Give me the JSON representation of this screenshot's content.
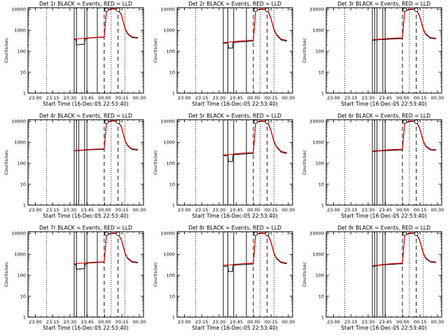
{
  "chart_data": {
    "type": "line",
    "layout": "3x3 grid of detector panels",
    "ylabel": "Counts/sec",
    "xlabel": "Start Time (16-Dec-05 22:53:40)",
    "x_tick_labels": [
      "23:00",
      "23:15",
      "23:30",
      "23:45",
      "00:00",
      "00:15",
      "00:30"
    ],
    "x_tick_minutes": [
      6.33,
      21.33,
      36.33,
      51.33,
      66.33,
      81.33,
      96.33
    ],
    "xlim_minutes": [
      0,
      100
    ],
    "yscale": "log",
    "ylim": [
      1,
      12000
    ],
    "y_tick_labels": [
      "1",
      "10",
      "100",
      "1000",
      "10000"
    ],
    "y_tick_values": [
      1,
      10,
      100,
      1000,
      10000
    ],
    "series_colors": {
      "events": "#000000",
      "lld": "#dd0000"
    },
    "panels": [
      {
        "title": "Det 1r BLACK = Events, RED = LLD",
        "events_x": [
          40,
          41.5,
          42,
          49,
          49.5,
          51,
          52,
          58,
          60,
          63,
          66,
          68,
          72,
          73,
          78,
          81,
          84,
          86,
          90,
          95
        ],
        "events_y": [
          350,
          380,
          200,
          220,
          380,
          400,
          420,
          440,
          450,
          460,
          460,
          9000,
          10000,
          10500,
          9800,
          5000,
          1200,
          700,
          450,
          420
        ],
        "lld_x": [
          40,
          44,
          48,
          52,
          58,
          62,
          66,
          68,
          72,
          73,
          78,
          81,
          84,
          86,
          90,
          95
        ],
        "lld_y": [
          380,
          400,
          410,
          430,
          460,
          470,
          480,
          9500,
          10500,
          11000,
          10300,
          5300,
          1300,
          750,
          480,
          450
        ],
        "vlines_solid": [
          40,
          42,
          49,
          51,
          60
        ],
        "vlines_dotted": [
          16,
          72,
          84
        ],
        "vlines_dashed": [
          66,
          78
        ],
        "markers_x": [
          68,
          78
        ]
      },
      {
        "title": "Det 2r BLACK = Events, RED = LLD",
        "events_x": [
          40,
          44,
          44.5,
          48,
          48.5,
          51,
          56,
          60,
          63,
          66,
          68,
          72,
          73,
          78,
          81,
          84,
          86,
          90,
          95
        ],
        "events_y": [
          240,
          240,
          140,
          140,
          260,
          270,
          280,
          290,
          300,
          300,
          9000,
          9800,
          10200,
          9500,
          4000,
          1000,
          600,
          350,
          300
        ],
        "lld_x": [
          40,
          44,
          48,
          52,
          58,
          62,
          66,
          68,
          72,
          73,
          78,
          81,
          84,
          86,
          90,
          95
        ],
        "lld_y": [
          260,
          270,
          280,
          300,
          320,
          330,
          340,
          9300,
          10200,
          10700,
          10000,
          4300,
          1100,
          650,
          380,
          330
        ],
        "vlines_solid": [
          40,
          44,
          49,
          60
        ],
        "vlines_dotted": [
          16,
          72,
          84
        ],
        "vlines_dashed": [
          66,
          78
        ],
        "markers_x": [
          68,
          78
        ]
      },
      {
        "title": "Det 3r BLACK = Events, RED = LLD",
        "events_x": [
          40,
          42,
          44,
          48,
          51,
          56,
          60,
          63,
          66,
          68,
          72,
          73,
          78,
          81,
          84,
          86,
          90,
          95
        ],
        "events_y": [
          330,
          340,
          350,
          360,
          370,
          380,
          390,
          400,
          400,
          8500,
          9500,
          10000,
          9500,
          4500,
          1100,
          650,
          420,
          390
        ],
        "lld_x": [
          40,
          44,
          48,
          52,
          58,
          62,
          66,
          68,
          72,
          73,
          78,
          81,
          84,
          86,
          90,
          95
        ],
        "lld_y": [
          350,
          370,
          380,
          400,
          420,
          430,
          440,
          9000,
          10000,
          10500,
          10000,
          4800,
          1200,
          700,
          450,
          420
        ],
        "vlines_solid": [
          40,
          42,
          44,
          49,
          51
        ],
        "vlines_dotted": [
          16,
          72,
          84
        ],
        "vlines_dashed": [
          66,
          78
        ],
        "markers_x": [
          68,
          78
        ]
      },
      {
        "title": "Det 4r BLACK = Events, RED = LLD",
        "events_x": [
          40,
          42,
          49,
          51,
          56,
          60,
          63,
          66,
          68,
          72,
          73,
          78,
          81,
          84,
          86,
          90,
          95
        ],
        "events_y": [
          380,
          400,
          420,
          430,
          440,
          450,
          460,
          460,
          9000,
          10000,
          10500,
          9800,
          5000,
          1200,
          700,
          460,
          420
        ],
        "lld_x": [
          40,
          44,
          48,
          52,
          58,
          62,
          66,
          68,
          72,
          73,
          78,
          81,
          84,
          86,
          90,
          95
        ],
        "lld_y": [
          400,
          420,
          430,
          450,
          470,
          480,
          490,
          9500,
          10500,
          11000,
          10300,
          5300,
          1300,
          750,
          490,
          450
        ],
        "vlines_solid": [
          40,
          42,
          44,
          49,
          51
        ],
        "vlines_dotted": [
          16,
          72,
          84
        ],
        "vlines_dashed": [
          66,
          78
        ],
        "markers_x": [
          68,
          78
        ]
      },
      {
        "title": "Det 5r BLACK = Events, RED = LLD",
        "events_x": [
          40,
          44,
          44.5,
          48,
          48.5,
          51,
          56,
          60,
          63,
          66,
          68,
          72,
          73,
          78,
          81,
          84,
          86,
          90,
          95
        ],
        "events_y": [
          230,
          230,
          120,
          120,
          250,
          260,
          270,
          280,
          290,
          290,
          9000,
          9800,
          10200,
          9500,
          4000,
          1000,
          600,
          340,
          290
        ],
        "lld_x": [
          40,
          44,
          48,
          52,
          58,
          62,
          66,
          68,
          72,
          73,
          78,
          81,
          84,
          86,
          90,
          95
        ],
        "lld_y": [
          250,
          260,
          270,
          290,
          310,
          320,
          330,
          9300,
          10200,
          10700,
          10000,
          4300,
          1100,
          650,
          370,
          320
        ],
        "vlines_solid": [
          40,
          44,
          49,
          60
        ],
        "vlines_dotted": [
          16,
          72,
          84
        ],
        "vlines_dashed": [
          66,
          78
        ],
        "markers_x": [
          68,
          78
        ]
      },
      {
        "title": "Det 6r BLACK = Events, RED = LLD",
        "events_x": [
          40,
          42,
          44,
          48,
          51,
          56,
          60,
          63,
          66,
          68,
          72,
          73,
          78,
          81,
          84,
          86,
          90,
          95
        ],
        "events_y": [
          360,
          370,
          380,
          390,
          400,
          410,
          420,
          430,
          430,
          8500,
          9500,
          10000,
          9500,
          4500,
          1100,
          650,
          440,
          410
        ],
        "lld_x": [
          40,
          44,
          48,
          52,
          58,
          62,
          66,
          68,
          72,
          73,
          78,
          81,
          84,
          86,
          90,
          95
        ],
        "lld_y": [
          380,
          400,
          410,
          430,
          450,
          460,
          470,
          9000,
          10000,
          10500,
          10000,
          4800,
          1200,
          700,
          470,
          440
        ],
        "vlines_solid": [
          40,
          42,
          44,
          49,
          51
        ],
        "vlines_dotted": [
          16,
          72,
          84
        ],
        "vlines_dashed": [
          66,
          78
        ],
        "markers_x": [
          68,
          78
        ]
      },
      {
        "title": "Det 7r BLACK = Events, RED = LLD",
        "events_x": [
          40,
          41.5,
          42,
          49,
          49.5,
          51,
          52,
          58,
          60,
          63,
          66,
          68,
          72,
          73,
          78,
          81,
          84,
          86,
          90,
          95
        ],
        "events_y": [
          320,
          340,
          190,
          210,
          340,
          360,
          380,
          400,
          410,
          420,
          420,
          8500,
          9500,
          10000,
          9500,
          4500,
          1100,
          650,
          420,
          390
        ],
        "lld_x": [
          40,
          44,
          48,
          52,
          58,
          62,
          66,
          68,
          72,
          73,
          78,
          81,
          84,
          86,
          90,
          95
        ],
        "lld_y": [
          350,
          370,
          380,
          400,
          420,
          430,
          440,
          9000,
          10000,
          10500,
          10000,
          4800,
          1200,
          700,
          450,
          420
        ],
        "vlines_solid": [
          40,
          42,
          49,
          51,
          60
        ],
        "vlines_dotted": [
          16,
          72,
          84
        ],
        "vlines_dashed": [
          66,
          78
        ],
        "markers_x": [
          68,
          78
        ]
      },
      {
        "title": "Det 8r BLACK = Events, RED = LLD",
        "events_x": [
          40,
          44,
          44.5,
          48,
          48.5,
          51,
          56,
          60,
          63,
          66,
          68,
          72,
          73,
          78,
          81,
          84,
          86,
          90,
          95
        ],
        "events_y": [
          270,
          270,
          150,
          150,
          300,
          310,
          320,
          330,
          340,
          340,
          9000,
          9800,
          10200,
          9500,
          4200,
          1050,
          620,
          400,
          350
        ],
        "lld_x": [
          40,
          44,
          48,
          52,
          58,
          62,
          66,
          68,
          72,
          73,
          78,
          81,
          84,
          86,
          90,
          95
        ],
        "lld_y": [
          300,
          310,
          320,
          340,
          360,
          370,
          380,
          9300,
          10200,
          10700,
          10000,
          4500,
          1150,
          670,
          430,
          380
        ],
        "vlines_solid": [
          40,
          44,
          49,
          60
        ],
        "vlines_dotted": [
          16,
          72,
          84
        ],
        "vlines_dashed": [
          66,
          78
        ],
        "markers_x": [
          68,
          78
        ]
      },
      {
        "title": "Det 9r BLACK = Events, RED = LLD",
        "events_x": [
          40,
          42,
          44,
          48,
          51,
          56,
          60,
          63,
          66,
          68,
          72,
          73,
          78,
          81,
          84,
          86,
          90,
          95
        ],
        "events_y": [
          250,
          270,
          290,
          310,
          320,
          330,
          340,
          350,
          350,
          8500,
          9500,
          10000,
          9500,
          4500,
          1100,
          650,
          430,
          400
        ],
        "lld_x": [
          40,
          44,
          48,
          52,
          58,
          62,
          66,
          68,
          72,
          73,
          78,
          81,
          84,
          86,
          90,
          95
        ],
        "lld_y": [
          280,
          300,
          320,
          340,
          360,
          370,
          380,
          9000,
          10000,
          10500,
          10000,
          4800,
          1200,
          700,
          460,
          430
        ],
        "vlines_solid": [
          40,
          42,
          44,
          49,
          51
        ],
        "vlines_dotted": [
          16,
          72,
          84
        ],
        "vlines_dashed": [
          66,
          78
        ],
        "markers_x": [
          68,
          78
        ]
      }
    ]
  }
}
